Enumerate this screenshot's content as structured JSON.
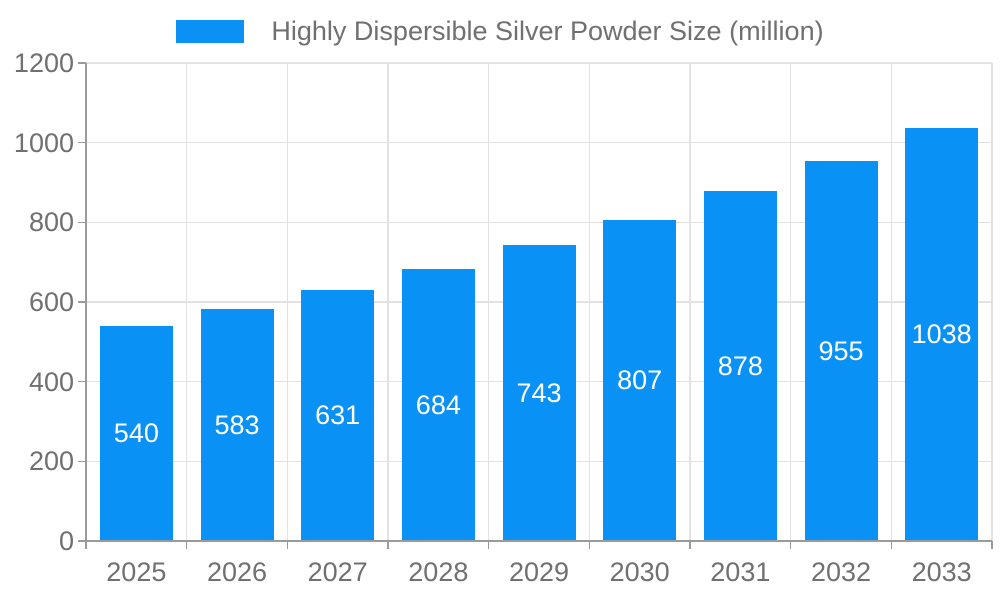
{
  "chart_data": {
    "type": "bar",
    "title": "Highly Dispersible Silver Powder Size (million)",
    "categories": [
      "2025",
      "2026",
      "2027",
      "2028",
      "2029",
      "2030",
      "2031",
      "2032",
      "2033"
    ],
    "values": [
      540,
      583,
      631,
      684,
      743,
      807,
      878,
      955,
      1038
    ],
    "xlabel": "",
    "ylabel": "",
    "ylim": [
      0,
      1200
    ],
    "ytick_step": 200,
    "ytick_labels": [
      "0",
      "200",
      "400",
      "600",
      "800",
      "1000",
      "1200"
    ],
    "grid": "on",
    "legend_position": "top-center",
    "colors": {
      "bar": "#0991f5",
      "bar_value_text": "#ffffff",
      "grid": "#e2e2e2",
      "axis": "#9a9a9a",
      "tick_text": "#707070",
      "legend_text": "#707070"
    }
  }
}
